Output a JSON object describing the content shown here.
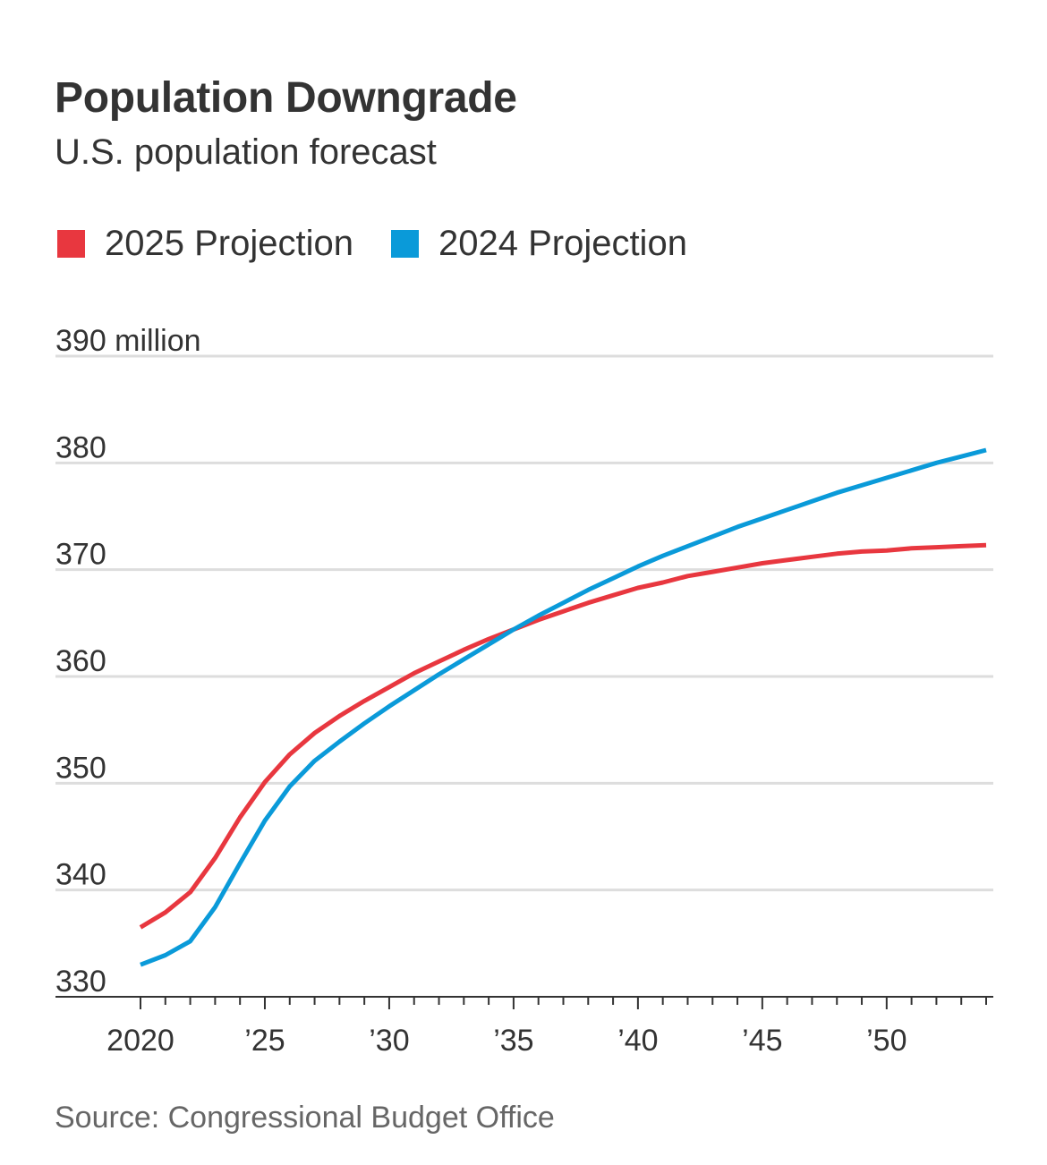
{
  "header": {
    "title": "Population Downgrade",
    "subtitle": "U.S. population forecast"
  },
  "legend": [
    {
      "label": "2025 Projection",
      "color": "#e8373f"
    },
    {
      "label": "2024 Projection",
      "color": "#0a9ad9"
    }
  ],
  "source": "Source: Congressional Budget Office",
  "chart_data": {
    "type": "line",
    "title": "Population Downgrade",
    "subtitle": "U.S. population forecast",
    "xlabel": "",
    "ylabel": "",
    "ylim": [
      330,
      390
    ],
    "xlim": [
      2020,
      2054
    ],
    "grid": true,
    "legend_position": "top-left",
    "y_ticks": [
      {
        "value": 390,
        "label": "390 million"
      },
      {
        "value": 380,
        "label": "380"
      },
      {
        "value": 370,
        "label": "370"
      },
      {
        "value": 360,
        "label": "360"
      },
      {
        "value": 350,
        "label": "350"
      },
      {
        "value": 340,
        "label": "340"
      },
      {
        "value": 330,
        "label": "330"
      }
    ],
    "x_ticks": [
      {
        "value": 2020,
        "label": "2020"
      },
      {
        "value": 2025,
        "label": "’25"
      },
      {
        "value": 2030,
        "label": "’30"
      },
      {
        "value": 2035,
        "label": "’35"
      },
      {
        "value": 2040,
        "label": "’40"
      },
      {
        "value": 2045,
        "label": "’45"
      },
      {
        "value": 2050,
        "label": "’50"
      }
    ],
    "x": [
      2020,
      2021,
      2022,
      2023,
      2024,
      2025,
      2026,
      2027,
      2028,
      2029,
      2030,
      2031,
      2032,
      2033,
      2034,
      2035,
      2036,
      2037,
      2038,
      2039,
      2040,
      2041,
      2042,
      2043,
      2044,
      2045,
      2046,
      2047,
      2048,
      2049,
      2050,
      2051,
      2052,
      2053,
      2054
    ],
    "series": [
      {
        "name": "2025 Projection",
        "color": "#e8373f",
        "values": [
          336.5,
          337.9,
          339.8,
          343.0,
          346.8,
          350.1,
          352.7,
          354.7,
          356.3,
          357.7,
          359.0,
          360.3,
          361.4,
          362.5,
          363.5,
          364.4,
          365.3,
          366.1,
          366.9,
          367.6,
          368.3,
          368.8,
          369.4,
          369.8,
          370.2,
          370.6,
          370.9,
          371.2,
          371.5,
          371.7,
          371.8,
          372.0,
          372.1,
          372.2,
          372.3
        ]
      },
      {
        "name": "2024 Projection",
        "color": "#0a9ad9",
        "values": [
          333.0,
          333.9,
          335.2,
          338.4,
          342.5,
          346.5,
          349.7,
          352.1,
          353.9,
          355.6,
          357.2,
          358.7,
          360.2,
          361.6,
          363.0,
          364.4,
          365.7,
          366.9,
          368.1,
          369.2,
          370.3,
          371.3,
          372.2,
          373.1,
          374.0,
          374.8,
          375.6,
          376.4,
          377.2,
          377.9,
          378.6,
          379.3,
          380.0,
          380.6,
          381.2
        ]
      }
    ]
  }
}
